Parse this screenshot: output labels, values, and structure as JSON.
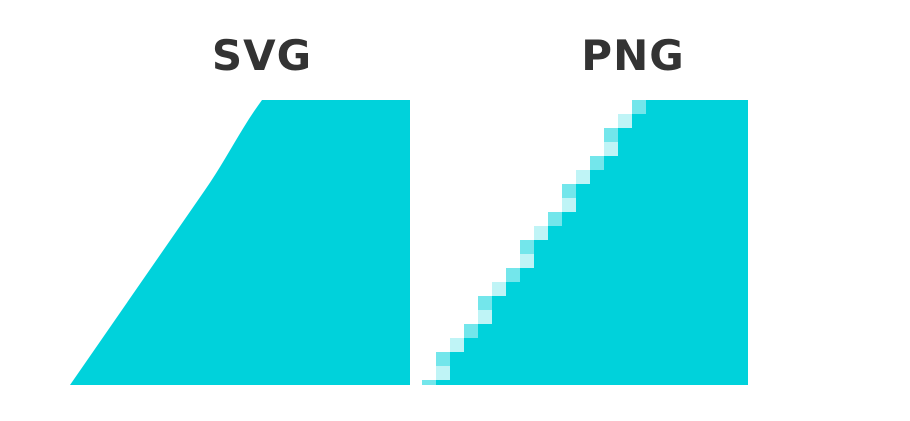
{
  "labels": {
    "svg": "SVG",
    "png": "PNG"
  },
  "colors": {
    "fill": "#00d2db",
    "title": "#333333",
    "background": "#ffffff"
  }
}
